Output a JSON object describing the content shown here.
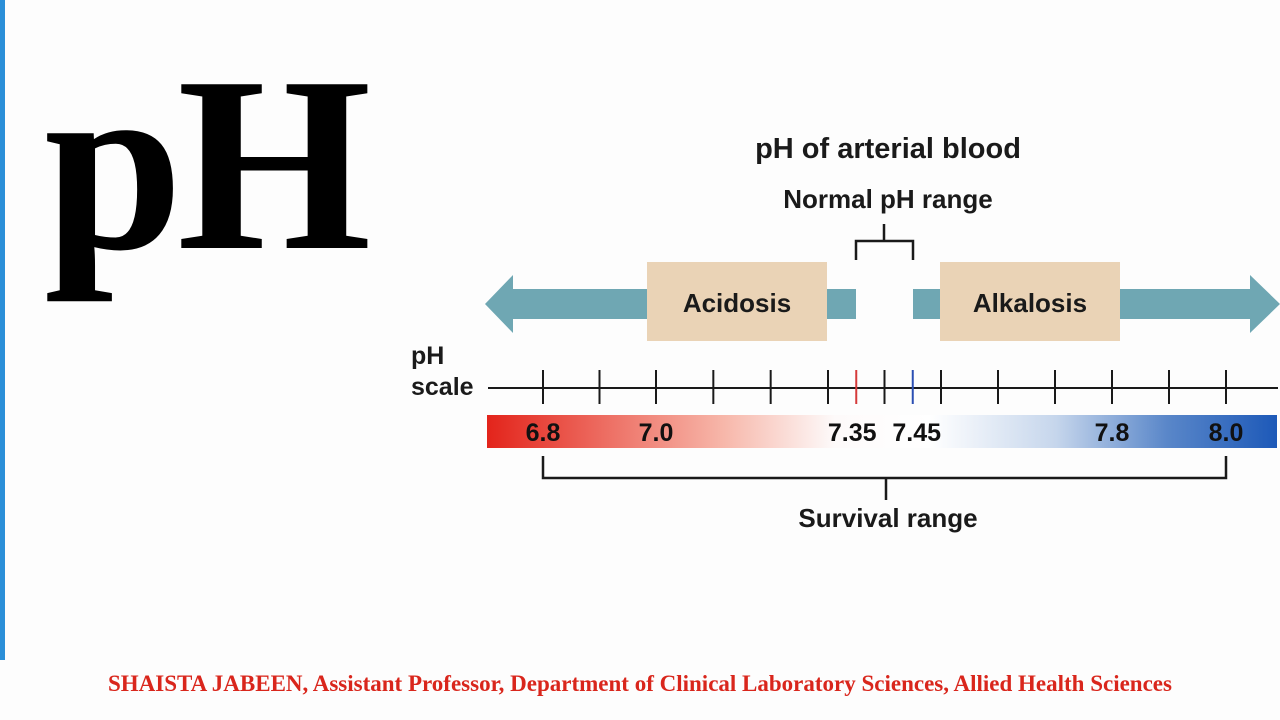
{
  "slide": {
    "title": "pH",
    "footer": "SHAISTA JABEEN, Assistant Professor, Department of Clinical Laboratory Sciences, Allied Health Sciences",
    "accent_color": "#2b8fd8",
    "footer_color": "#d9261c"
  },
  "diagram": {
    "title": "pH of arterial blood",
    "normal_label": "Normal pH range",
    "acidosis_label": "Acidosis",
    "alkalosis_label": "Alkalosis",
    "scale_label_line1": "pH",
    "scale_label_line2": "scale",
    "survival_label": "Survival range",
    "ticks": [
      6.8,
      6.9,
      7.0,
      7.1,
      7.2,
      7.3,
      7.35,
      7.4,
      7.45,
      7.5,
      7.6,
      7.7,
      7.8,
      7.9,
      8.0
    ],
    "tick_labels": [
      "6.8",
      "7.0",
      "7.35",
      "7.45",
      "7.8",
      "8.0"
    ],
    "normal_range": [
      7.35,
      7.45
    ],
    "survival_range": [
      6.8,
      8.0
    ],
    "colors": {
      "arrow": "#6fa7b3",
      "box": "#ead3b6",
      "acid": "#e3241b",
      "base": "#1d59b8",
      "normal_low_tick": "#d53b3b",
      "normal_high_tick": "#2b4fb3"
    }
  }
}
